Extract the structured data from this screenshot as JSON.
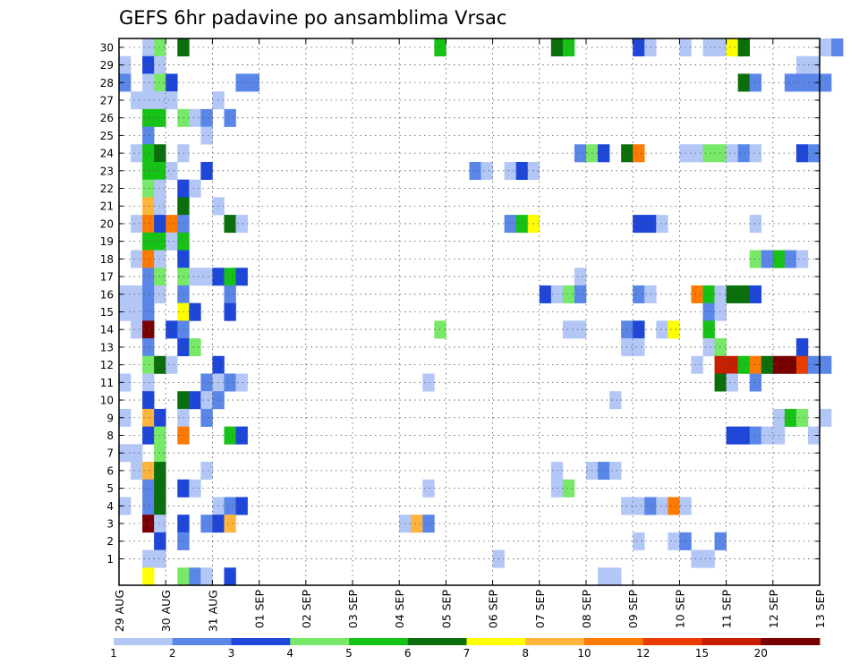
{
  "chart_data": {
    "type": "heatmap",
    "title": "GEFS 6hr padavine po ansamblima Vrsac",
    "xlabel": "",
    "ylabel": "",
    "y_categories": [
      "1",
      "2",
      "3",
      "4",
      "5",
      "6",
      "7",
      "8",
      "9",
      "10",
      "11",
      "12",
      "13",
      "14",
      "15",
      "16",
      "17",
      "18",
      "19",
      "20",
      "21",
      "22",
      "23",
      "24",
      "25",
      "26",
      "27",
      "28",
      "29",
      "30"
    ],
    "x_tick_labels": [
      "29 AUG",
      "30 AUG",
      "31 AUG",
      "01 SEP",
      "02 SEP",
      "03 SEP",
      "04 SEP",
      "05 SEP",
      "06 SEP",
      "07 SEP",
      "08 SEP",
      "09 SEP",
      "10 SEP",
      "11 SEP",
      "12 SEP",
      "13 SEP"
    ],
    "time_steps_per_day": 4,
    "first_step_offset": 0,
    "grid": true,
    "colorbar": {
      "labels": [
        "1",
        "2",
        "3",
        "4",
        "5",
        "6",
        "7",
        "8",
        "10",
        "12",
        "15",
        "20"
      ],
      "colors": [
        "#b3c7f7",
        "#5a86e8",
        "#1e46d8",
        "#78e868",
        "#17c217",
        "#0a6e0a",
        "#ffff00",
        "#ffb43c",
        "#ff7a00",
        "#e83c00",
        "#c81e00",
        "#780000"
      ]
    },
    "cells": [
      [
        1,
        "30",
        2,
        1
      ],
      [
        1,
        "30",
        3,
        4
      ],
      [
        1,
        "30",
        5,
        6
      ],
      [
        1,
        "30",
        27,
        5
      ],
      [
        1,
        "30",
        37,
        6
      ],
      [
        1,
        "30",
        38,
        5
      ],
      [
        1,
        "30",
        44,
        3
      ],
      [
        1,
        "30",
        45,
        1
      ],
      [
        1,
        "30",
        48,
        1
      ],
      [
        1,
        "30",
        50,
        1
      ],
      [
        1,
        "30",
        51,
        1
      ],
      [
        1,
        "30",
        52,
        7
      ],
      [
        1,
        "30",
        53,
        6
      ],
      [
        1,
        "30",
        60,
        1
      ],
      [
        1,
        "30",
        61,
        2
      ],
      [
        1,
        "29",
        0,
        1
      ],
      [
        1,
        "29",
        2,
        3
      ],
      [
        1,
        "29",
        3,
        1
      ],
      [
        1,
        "29",
        58,
        1
      ],
      [
        1,
        "29",
        59,
        1
      ],
      [
        1,
        "28",
        0,
        2
      ],
      [
        1,
        "28",
        2,
        1
      ],
      [
        1,
        "28",
        3,
        4
      ],
      [
        1,
        "28",
        4,
        3
      ],
      [
        1,
        "28",
        10,
        2
      ],
      [
        1,
        "28",
        11,
        2
      ],
      [
        1,
        "28",
        53,
        6
      ],
      [
        1,
        "28",
        54,
        2
      ],
      [
        1,
        "28",
        57,
        2
      ],
      [
        1,
        "28",
        58,
        2
      ],
      [
        1,
        "28",
        59,
        2
      ],
      [
        1,
        "28",
        60,
        2
      ],
      [
        1,
        "27",
        1,
        1
      ],
      [
        1,
        "27",
        2,
        1
      ],
      [
        1,
        "27",
        3,
        1
      ],
      [
        1,
        "27",
        4,
        1
      ],
      [
        1,
        "27",
        8,
        1
      ],
      [
        1,
        "26",
        2,
        5
      ],
      [
        1,
        "26",
        3,
        5
      ],
      [
        1,
        "26",
        5,
        4
      ],
      [
        1,
        "26",
        6,
        1
      ],
      [
        1,
        "26",
        7,
        2
      ],
      [
        1,
        "26",
        9,
        2
      ],
      [
        1,
        "25",
        2,
        2
      ],
      [
        1,
        "25",
        7,
        1
      ],
      [
        1,
        "24",
        1,
        1
      ],
      [
        1,
        "24",
        2,
        5
      ],
      [
        1,
        "24",
        3,
        6
      ],
      [
        1,
        "24",
        5,
        1
      ],
      [
        1,
        "24",
        39,
        2
      ],
      [
        1,
        "24",
        40,
        4
      ],
      [
        1,
        "24",
        41,
        3
      ],
      [
        1,
        "24",
        43,
        6
      ],
      [
        1,
        "24",
        44,
        9
      ],
      [
        1,
        "24",
        48,
        1
      ],
      [
        1,
        "24",
        49,
        1
      ],
      [
        1,
        "24",
        50,
        4
      ],
      [
        1,
        "24",
        51,
        4
      ],
      [
        1,
        "24",
        52,
        1
      ],
      [
        1,
        "24",
        53,
        2
      ],
      [
        1,
        "24",
        54,
        1
      ],
      [
        1,
        "24",
        58,
        3
      ],
      [
        1,
        "24",
        59,
        2
      ],
      [
        1,
        "23",
        2,
        5
      ],
      [
        1,
        "23",
        3,
        5
      ],
      [
        1,
        "23",
        4,
        1
      ],
      [
        1,
        "23",
        7,
        3
      ],
      [
        1,
        "23",
        30,
        2
      ],
      [
        1,
        "23",
        31,
        1
      ],
      [
        1,
        "23",
        33,
        1
      ],
      [
        1,
        "23",
        34,
        3
      ],
      [
        1,
        "23",
        35,
        1
      ],
      [
        1,
        "22",
        2,
        4
      ],
      [
        1,
        "22",
        3,
        1
      ],
      [
        1,
        "22",
        5,
        3
      ],
      [
        1,
        "22",
        6,
        1
      ],
      [
        1,
        "21",
        2,
        8
      ],
      [
        1,
        "21",
        3,
        1
      ],
      [
        1,
        "21",
        5,
        6
      ],
      [
        1,
        "21",
        8,
        1
      ],
      [
        1,
        "20",
        1,
        1
      ],
      [
        1,
        "20",
        2,
        9
      ],
      [
        1,
        "20",
        3,
        3
      ],
      [
        1,
        "20",
        4,
        9
      ],
      [
        1,
        "20",
        5,
        2
      ],
      [
        1,
        "20",
        9,
        6
      ],
      [
        1,
        "20",
        10,
        1
      ],
      [
        1,
        "20",
        33,
        2
      ],
      [
        1,
        "20",
        34,
        5
      ],
      [
        1,
        "20",
        35,
        7
      ],
      [
        1,
        "20",
        44,
        3
      ],
      [
        1,
        "20",
        45,
        3
      ],
      [
        1,
        "20",
        46,
        1
      ],
      [
        1,
        "20",
        54,
        1
      ],
      [
        1,
        "19",
        2,
        5
      ],
      [
        1,
        "19",
        3,
        5
      ],
      [
        1,
        "19",
        4,
        1
      ],
      [
        1,
        "19",
        5,
        5
      ],
      [
        1,
        "18",
        1,
        1
      ],
      [
        1,
        "18",
        2,
        9
      ],
      [
        1,
        "18",
        3,
        1
      ],
      [
        1,
        "18",
        5,
        3
      ],
      [
        1,
        "18",
        54,
        4
      ],
      [
        1,
        "18",
        55,
        2
      ],
      [
        1,
        "18",
        56,
        5
      ],
      [
        1,
        "18",
        57,
        2
      ],
      [
        1,
        "18",
        58,
        1
      ],
      [
        1,
        "17",
        2,
        2
      ],
      [
        1,
        "17",
        3,
        4
      ],
      [
        1,
        "17",
        5,
        4
      ],
      [
        1,
        "17",
        6,
        1
      ],
      [
        1,
        "17",
        7,
        1
      ],
      [
        1,
        "17",
        8,
        3
      ],
      [
        1,
        "17",
        9,
        5
      ],
      [
        1,
        "17",
        10,
        3
      ],
      [
        1,
        "17",
        39,
        1
      ],
      [
        1,
        "16",
        0,
        1
      ],
      [
        1,
        "16",
        1,
        1
      ],
      [
        1,
        "16",
        2,
        2
      ],
      [
        1,
        "16",
        3,
        1
      ],
      [
        1,
        "16",
        5,
        2
      ],
      [
        1,
        "16",
        9,
        2
      ],
      [
        1,
        "16",
        36,
        3
      ],
      [
        1,
        "16",
        37,
        1
      ],
      [
        1,
        "16",
        38,
        4
      ],
      [
        1,
        "16",
        39,
        2
      ],
      [
        1,
        "16",
        44,
        2
      ],
      [
        1,
        "16",
        45,
        1
      ],
      [
        1,
        "16",
        49,
        9
      ],
      [
        1,
        "16",
        50,
        5
      ],
      [
        1,
        "16",
        51,
        1
      ],
      [
        1,
        "16",
        52,
        6
      ],
      [
        1,
        "16",
        53,
        6
      ],
      [
        1,
        "16",
        54,
        3
      ],
      [
        1,
        "15",
        0,
        1
      ],
      [
        1,
        "15",
        1,
        1
      ],
      [
        1,
        "15",
        2,
        2
      ],
      [
        1,
        "15",
        5,
        7
      ],
      [
        1,
        "15",
        6,
        3
      ],
      [
        1,
        "15",
        9,
        3
      ],
      [
        1,
        "15",
        50,
        2
      ],
      [
        1,
        "15",
        51,
        1
      ],
      [
        1,
        "14",
        1,
        1
      ],
      [
        1,
        "14",
        2,
        12
      ],
      [
        1,
        "14",
        4,
        3
      ],
      [
        1,
        "14",
        5,
        2
      ],
      [
        1,
        "14",
        27,
        4
      ],
      [
        1,
        "14",
        38,
        1
      ],
      [
        1,
        "14",
        39,
        1
      ],
      [
        1,
        "14",
        43,
        2
      ],
      [
        1,
        "14",
        44,
        3
      ],
      [
        1,
        "14",
        46,
        1
      ],
      [
        1,
        "14",
        47,
        7
      ],
      [
        1,
        "14",
        50,
        5
      ],
      [
        1,
        "13",
        2,
        2
      ],
      [
        1,
        "13",
        5,
        3
      ],
      [
        1,
        "13",
        6,
        4
      ],
      [
        1,
        "13",
        43,
        1
      ],
      [
        1,
        "13",
        44,
        1
      ],
      [
        1,
        "13",
        50,
        1
      ],
      [
        1,
        "13",
        51,
        4
      ],
      [
        1,
        "13",
        58,
        3
      ],
      [
        1,
        "12",
        2,
        4
      ],
      [
        1,
        "12",
        3,
        6
      ],
      [
        1,
        "12",
        4,
        1
      ],
      [
        1,
        "12",
        8,
        3
      ],
      [
        1,
        "12",
        49,
        1
      ],
      [
        1,
        "12",
        51,
        11
      ],
      [
        1,
        "12",
        52,
        11
      ],
      [
        1,
        "12",
        53,
        5
      ],
      [
        1,
        "12",
        54,
        9
      ],
      [
        1,
        "12",
        55,
        6
      ],
      [
        1,
        "12",
        56,
        12
      ],
      [
        1,
        "12",
        57,
        12
      ],
      [
        1,
        "12",
        58,
        10
      ],
      [
        1,
        "12",
        59,
        2
      ],
      [
        1,
        "12",
        60,
        2
      ],
      [
        1,
        "11",
        0,
        1
      ],
      [
        1,
        "11",
        2,
        1
      ],
      [
        1,
        "11",
        7,
        2
      ],
      [
        1,
        "11",
        8,
        1
      ],
      [
        1,
        "11",
        9,
        2
      ],
      [
        1,
        "11",
        10,
        1
      ],
      [
        1,
        "11",
        26,
        1
      ],
      [
        1,
        "11",
        51,
        6
      ],
      [
        1,
        "11",
        52,
        1
      ],
      [
        1,
        "11",
        54,
        2
      ],
      [
        1,
        "10",
        2,
        3
      ],
      [
        1,
        "10",
        5,
        6
      ],
      [
        1,
        "10",
        6,
        3
      ],
      [
        1,
        "10",
        7,
        1
      ],
      [
        1,
        "10",
        8,
        2
      ],
      [
        1,
        "10",
        42,
        1
      ],
      [
        1,
        "9",
        0,
        1
      ],
      [
        1,
        "9",
        2,
        8
      ],
      [
        1,
        "9",
        3,
        3
      ],
      [
        1,
        "9",
        5,
        1
      ],
      [
        1,
        "9",
        7,
        2
      ],
      [
        1,
        "9",
        56,
        1
      ],
      [
        1,
        "9",
        57,
        5
      ],
      [
        1,
        "9",
        58,
        4
      ],
      [
        1,
        "9",
        60,
        1
      ],
      [
        1,
        "8",
        2,
        3
      ],
      [
        1,
        "8",
        3,
        4
      ],
      [
        1,
        "8",
        5,
        9
      ],
      [
        1,
        "8",
        9,
        5
      ],
      [
        1,
        "8",
        10,
        3
      ],
      [
        1,
        "8",
        52,
        3
      ],
      [
        1,
        "8",
        53,
        3
      ],
      [
        1,
        "8",
        54,
        2
      ],
      [
        1,
        "8",
        55,
        1
      ],
      [
        1,
        "8",
        56,
        1
      ],
      [
        1,
        "8",
        59,
        1
      ],
      [
        1,
        "7",
        0,
        1
      ],
      [
        1,
        "7",
        1,
        1
      ],
      [
        1,
        "7",
        3,
        4
      ],
      [
        1,
        "6",
        1,
        1
      ],
      [
        1,
        "6",
        2,
        8
      ],
      [
        1,
        "6",
        3,
        6
      ],
      [
        1,
        "6",
        7,
        1
      ],
      [
        1,
        "6",
        37,
        1
      ],
      [
        1,
        "6",
        40,
        1
      ],
      [
        1,
        "6",
        41,
        2
      ],
      [
        1,
        "6",
        42,
        1
      ],
      [
        1,
        "5",
        2,
        2
      ],
      [
        1,
        "5",
        3,
        6
      ],
      [
        1,
        "5",
        5,
        3
      ],
      [
        1,
        "5",
        6,
        1
      ],
      [
        1,
        "5",
        26,
        1
      ],
      [
        1,
        "5",
        37,
        1
      ],
      [
        1,
        "5",
        38,
        4
      ],
      [
        1,
        "4",
        0,
        1
      ],
      [
        1,
        "4",
        2,
        2
      ],
      [
        1,
        "4",
        3,
        6
      ],
      [
        1,
        "4",
        8,
        1
      ],
      [
        1,
        "4",
        9,
        2
      ],
      [
        1,
        "4",
        10,
        3
      ],
      [
        1,
        "4",
        43,
        1
      ],
      [
        1,
        "4",
        44,
        1
      ],
      [
        1,
        "4",
        45,
        2
      ],
      [
        1,
        "4",
        46,
        1
      ],
      [
        1,
        "4",
        47,
        9
      ],
      [
        1,
        "4",
        48,
        1
      ],
      [
        1,
        "3",
        2,
        12
      ],
      [
        1,
        "3",
        3,
        1
      ],
      [
        1,
        "3",
        5,
        3
      ],
      [
        1,
        "3",
        7,
        2
      ],
      [
        1,
        "3",
        8,
        3
      ],
      [
        1,
        "3",
        9,
        8
      ],
      [
        1,
        "3",
        24,
        1
      ],
      [
        1,
        "3",
        25,
        8
      ],
      [
        1,
        "3",
        26,
        2
      ],
      [
        1,
        "2",
        3,
        3
      ],
      [
        1,
        "2",
        5,
        2
      ],
      [
        1,
        "2",
        44,
        1
      ],
      [
        1,
        "2",
        47,
        1
      ],
      [
        1,
        "2",
        48,
        2
      ],
      [
        1,
        "2",
        51,
        2
      ],
      [
        1,
        "1",
        2,
        1
      ],
      [
        1,
        "1",
        3,
        1
      ],
      [
        1,
        "1",
        32,
        1
      ],
      [
        1,
        "1",
        49,
        1
      ],
      [
        1,
        "1",
        50,
        1
      ],
      [
        1,
        "0",
        2,
        7
      ],
      [
        1,
        "0",
        5,
        4
      ],
      [
        1,
        "0",
        6,
        2
      ],
      [
        1,
        "0",
        7,
        1
      ],
      [
        1,
        "0",
        9,
        3
      ],
      [
        1,
        "0",
        41,
        1
      ],
      [
        1,
        "0",
        42,
        1
      ]
    ]
  }
}
